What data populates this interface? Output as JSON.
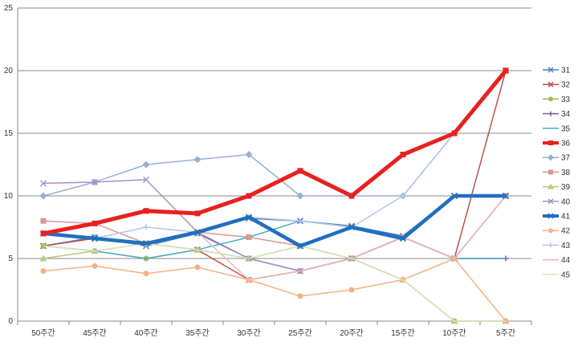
{
  "chart_data": {
    "type": "line",
    "title": "",
    "xlabel": "",
    "ylabel": "",
    "ylim": [
      0,
      25
    ],
    "yticks": [
      "0",
      "5",
      "10",
      "15",
      "20",
      "25"
    ],
    "grid": "horizontal",
    "legend_position": "right",
    "categories": [
      "50주간",
      "45주간",
      "40주간",
      "35주간",
      "30주간",
      "25주간",
      "20주간",
      "15주간",
      "10주간",
      "5주간"
    ],
    "series": [
      {
        "name": "31",
        "color": "#4f81bd",
        "marker": "x",
        "width": 1.5,
        "values": [
          6,
          6.7,
          6,
          7,
          8.2,
          8,
          7.6,
          6.8,
          10,
          10
        ]
      },
      {
        "name": "32",
        "color": "#c0504d",
        "marker": "x",
        "width": 1.5,
        "values": [
          6,
          6.6,
          6.2,
          5.7,
          3.3,
          4,
          5,
          6.7,
          5,
          20
        ]
      },
      {
        "name": "33",
        "color": "#9bbb59",
        "marker": "circle",
        "width": 1.5,
        "values": [
          6,
          5.6,
          5,
          5.7,
          5,
          6,
          5,
          3.3,
          0,
          0
        ]
      },
      {
        "name": "34",
        "color": "#7d60a0",
        "marker": "plus",
        "width": 1.5,
        "values": [
          7,
          6.7,
          6.2,
          7,
          5,
          4,
          5,
          6.7,
          5,
          5
        ]
      },
      {
        "name": "35",
        "color": "#4bacc6",
        "marker": "none",
        "width": 1.5,
        "values": [
          6,
          5.6,
          5,
          5.7,
          6.7,
          8,
          7.5,
          6.7,
          5,
          5
        ]
      },
      {
        "name": "36",
        "color": "#e8201f",
        "marker": "square",
        "width": 5,
        "values": [
          7,
          7.8,
          8.8,
          8.6,
          10,
          12,
          10,
          13.3,
          15,
          20
        ]
      },
      {
        "name": "37",
        "color": "#9aaed6",
        "marker": "diamond",
        "width": 1.5,
        "values": [
          10,
          11.1,
          12.5,
          12.9,
          13.3,
          10,
          10,
          10,
          15,
          20
        ]
      },
      {
        "name": "38",
        "color": "#d99795",
        "marker": "square",
        "width": 1.5,
        "values": [
          8,
          7.8,
          6.2,
          7.1,
          6.7,
          6,
          5,
          6.7,
          5,
          10
        ]
      },
      {
        "name": "39",
        "color": "#b5cc7e",
        "marker": "triangle",
        "width": 1.5,
        "values": [
          5,
          5.6,
          6.2,
          5.7,
          5,
          6,
          5,
          3.3,
          0,
          0
        ]
      },
      {
        "name": "40",
        "color": "#a593c2",
        "marker": "x",
        "width": 1.5,
        "values": [
          11,
          11.1,
          11.3,
          7.1,
          5,
          4,
          5,
          6.7,
          5,
          10
        ]
      },
      {
        "name": "41",
        "color": "#1f6fc0",
        "marker": "x",
        "width": 4.5,
        "values": [
          7,
          6.6,
          6.2,
          7.1,
          8.3,
          6,
          7.5,
          6.6,
          10,
          10
        ]
      },
      {
        "name": "42",
        "color": "#f4b183",
        "marker": "circle",
        "width": 1.5,
        "values": [
          4,
          4.4,
          3.8,
          4.3,
          3.3,
          2,
          2.5,
          3.3,
          5,
          0
        ]
      },
      {
        "name": "43",
        "color": "#b4c7e7",
        "marker": "plus",
        "width": 1.5,
        "values": [
          7,
          6.6,
          7.5,
          7.1,
          8.3,
          8,
          7.5,
          10,
          15,
          20
        ]
      },
      {
        "name": "44",
        "color": "#e6b9b8",
        "marker": "none",
        "width": 1.5,
        "values": [
          7,
          6.6,
          6.2,
          7.1,
          3.3,
          4,
          5,
          6.7,
          5,
          10
        ]
      },
      {
        "name": "45",
        "color": "#d7e4bd",
        "marker": "none",
        "width": 1.5,
        "values": [
          6,
          5.6,
          6.2,
          5.7,
          5,
          6,
          5,
          3.3,
          0,
          0
        ]
      }
    ]
  }
}
